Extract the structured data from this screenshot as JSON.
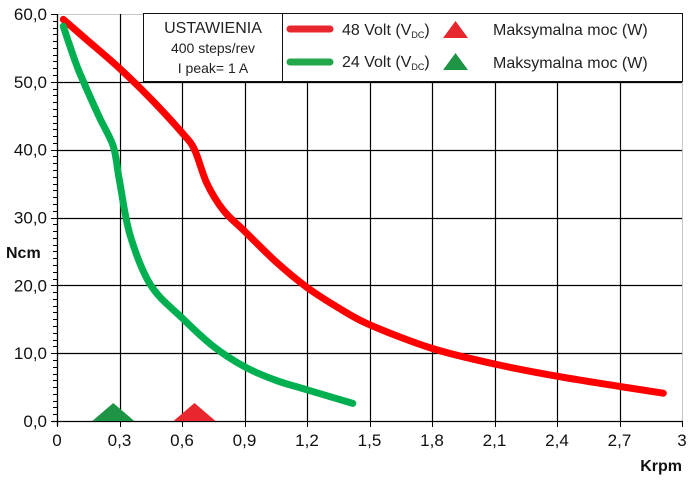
{
  "chart_data": {
    "type": "line",
    "xlabel": "Krpm",
    "ylabel": "Ncm",
    "xlim": [
      0,
      3
    ],
    "ylim": [
      0,
      60
    ],
    "grid": true,
    "x_ticks": [
      "0",
      "0,3",
      "0,6",
      "0,9",
      "1,2",
      "1,5",
      "1,8",
      "2,1",
      "2,4",
      "2,7",
      "3"
    ],
    "x_tick_values": [
      0,
      0.3,
      0.6,
      0.9,
      1.2,
      1.5,
      1.8,
      2.1,
      2.4,
      2.7,
      3
    ],
    "y_ticks": [
      "0,0",
      "10,0",
      "20,0",
      "30,0",
      "40,0",
      "50,0",
      "60,0"
    ],
    "y_tick_values": [
      0,
      10,
      20,
      30,
      40,
      50,
      60
    ],
    "settings_box": {
      "title": "USTAWIENIA",
      "line1": "400 steps/rev",
      "line2": "I peak= 1 A"
    },
    "series": [
      {
        "name": "48 Volt (VDC)",
        "label_main": "48 Volt (V",
        "label_sub": "DC",
        "label_close": ")",
        "color": "#ff0000",
        "legend_color": "#e8262e",
        "x": [
          0.03,
          0.15,
          0.3,
          0.45,
          0.6,
          0.66,
          0.72,
          0.8,
          0.9,
          1.05,
          1.2,
          1.35,
          1.5,
          1.8,
          2.1,
          2.4,
          2.7,
          2.91
        ],
        "y": [
          59.2,
          56.0,
          52.0,
          47.5,
          42.5,
          40.0,
          35.0,
          31.0,
          28.0,
          23.5,
          19.7,
          16.7,
          14.2,
          10.7,
          8.4,
          6.6,
          5.1,
          4.1
        ]
      },
      {
        "name": "24 Volt (VDC)",
        "label_main": "24 Volt (V",
        "label_sub": "DC",
        "label_close": ")",
        "color": "#00b050",
        "legend_color": "#22a84a",
        "x": [
          0.03,
          0.1,
          0.2,
          0.27,
          0.3,
          0.35,
          0.45,
          0.6,
          0.75,
          0.9,
          1.05,
          1.2,
          1.42
        ],
        "y": [
          58.2,
          52.0,
          45.0,
          40.5,
          35.4,
          27.5,
          20.0,
          15.2,
          11.0,
          8.0,
          6.0,
          4.6,
          2.6
        ]
      }
    ],
    "markers": [
      {
        "name": "Maksymalna moc (W)",
        "series": "48 Volt (VDC)",
        "x": 0.66,
        "y": 0,
        "color": "#e8262e"
      },
      {
        "name": "Maksymalna moc (W)",
        "series": "24 Volt (VDC)",
        "x": 0.27,
        "y": 0,
        "color": "#1e9445"
      }
    ]
  }
}
